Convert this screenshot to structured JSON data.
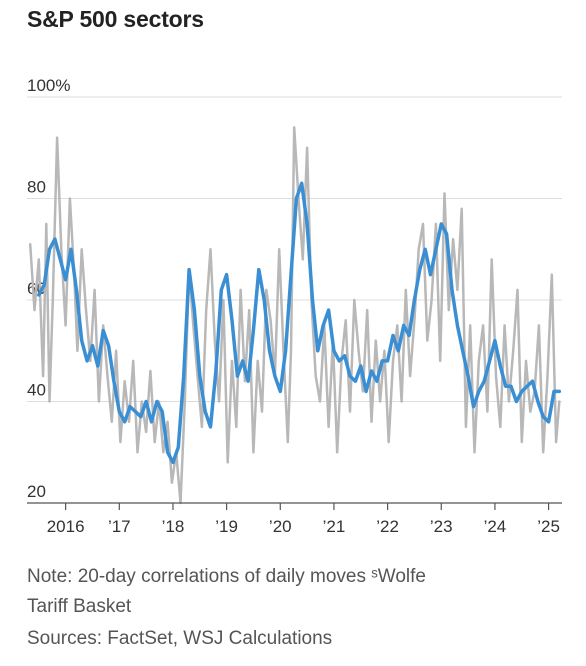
{
  "title": "S&P 500 sectors",
  "notes": {
    "line1": "Note: 20-day correlations of daily moves ˢWolfe",
    "line2": "Tariff Basket",
    "sources": "Sources: FactSet, WSJ Calculations"
  },
  "chart_data": {
    "type": "line",
    "title": "S&P 500 sectors",
    "xlabel": "",
    "ylabel": "",
    "xlim": [
      2015.28,
      2025.25
    ],
    "ylim": [
      20,
      100
    ],
    "grid": true,
    "legend": "none",
    "y_ticks": [
      {
        "value": 100,
        "label": "100%"
      },
      {
        "value": 80,
        "label": "80"
      },
      {
        "value": 60,
        "label": "60"
      },
      {
        "value": 40,
        "label": "40"
      },
      {
        "value": 20,
        "label": "20"
      }
    ],
    "x_ticks": [
      {
        "value": 2016,
        "label": "2016"
      },
      {
        "value": 2017,
        "label": "’17"
      },
      {
        "value": 2018,
        "label": "’18"
      },
      {
        "value": 2019,
        "label": "’19"
      },
      {
        "value": 2020,
        "label": "’20"
      },
      {
        "value": 2021,
        "label": "’21"
      },
      {
        "value": 2022,
        "label": "’22"
      },
      {
        "value": 2023,
        "label": "’23"
      },
      {
        "value": 2024,
        "label": "’24"
      },
      {
        "value": 2025,
        "label": "’25"
      }
    ],
    "series": [
      {
        "color": "#b8b8b8",
        "x": [
          2015.34,
          2015.42,
          2015.5,
          2015.58,
          2015.64,
          2015.7,
          2015.76,
          2015.84,
          2015.92,
          2016.0,
          2016.08,
          2016.16,
          2016.22,
          2016.3,
          2016.38,
          2016.46,
          2016.54,
          2016.62,
          2016.7,
          2016.78,
          2016.86,
          2016.94,
          2017.02,
          2017.1,
          2017.18,
          2017.26,
          2017.34,
          2017.42,
          2017.5,
          2017.58,
          2017.66,
          2017.74,
          2017.82,
          2017.9,
          2017.98,
          2018.06,
          2018.14,
          2018.22,
          2018.3,
          2018.38,
          2018.46,
          2018.54,
          2018.62,
          2018.7,
          2018.78,
          2018.86,
          2018.94,
          2019.02,
          2019.1,
          2019.18,
          2019.26,
          2019.34,
          2019.42,
          2019.5,
          2019.58,
          2019.66,
          2019.74,
          2019.82,
          2019.9,
          2019.98,
          2020.06,
          2020.14,
          2020.2,
          2020.26,
          2020.34,
          2020.42,
          2020.5,
          2020.58,
          2020.66,
          2020.74,
          2020.82,
          2020.9,
          2020.98,
          2021.06,
          2021.14,
          2021.22,
          2021.3,
          2021.38,
          2021.46,
          2021.54,
          2021.62,
          2021.7,
          2021.78,
          2021.86,
          2021.94,
          2022.02,
          2022.1,
          2022.18,
          2022.26,
          2022.34,
          2022.42,
          2022.5,
          2022.58,
          2022.66,
          2022.74,
          2022.82,
          2022.9,
          2022.98,
          2023.06,
          2023.14,
          2023.22,
          2023.3,
          2023.38,
          2023.46,
          2023.54,
          2023.62,
          2023.7,
          2023.78,
          2023.86,
          2023.94,
          2024.02,
          2024.1,
          2024.18,
          2024.26,
          2024.34,
          2024.42,
          2024.5,
          2024.58,
          2024.66,
          2024.74,
          2024.82,
          2024.9,
          2024.98,
          2025.06,
          2025.14,
          2025.2
        ],
        "values": [
          71,
          58,
          68,
          45,
          75,
          40,
          60,
          92,
          70,
          55,
          80,
          65,
          50,
          70,
          58,
          48,
          62,
          40,
          55,
          45,
          36,
          50,
          32,
          44,
          36,
          48,
          30,
          40,
          34,
          46,
          32,
          40,
          30,
          36,
          24,
          30,
          20,
          40,
          66,
          55,
          45,
          35,
          58,
          70,
          52,
          40,
          60,
          28,
          48,
          35,
          62,
          44,
          58,
          30,
          48,
          38,
          62,
          56,
          45,
          70,
          50,
          32,
          50,
          94,
          80,
          68,
          90,
          60,
          45,
          40,
          55,
          35,
          52,
          30,
          48,
          56,
          38,
          60,
          50,
          42,
          58,
          36,
          52,
          40,
          50,
          32,
          48,
          55,
          40,
          62,
          45,
          56,
          70,
          75,
          52,
          60,
          75,
          48,
          81,
          58,
          72,
          62,
          78,
          35,
          55,
          30,
          48,
          55,
          38,
          68,
          45,
          35,
          55,
          40,
          50,
          62,
          32,
          48,
          38,
          42,
          55,
          30,
          45,
          65,
          32,
          40
        ]
      },
      {
        "color": "#3a8fd4",
        "x": [
          2015.5,
          2015.6,
          2015.7,
          2015.8,
          2015.9,
          2016.0,
          2016.1,
          2016.2,
          2016.3,
          2016.4,
          2016.5,
          2016.6,
          2016.7,
          2016.8,
          2016.9,
          2017.0,
          2017.1,
          2017.2,
          2017.3,
          2017.4,
          2017.5,
          2017.6,
          2017.7,
          2017.8,
          2017.9,
          2018.0,
          2018.1,
          2018.2,
          2018.3,
          2018.4,
          2018.5,
          2018.6,
          2018.7,
          2018.8,
          2018.9,
          2019.0,
          2019.1,
          2019.2,
          2019.3,
          2019.4,
          2019.5,
          2019.6,
          2019.7,
          2019.8,
          2019.9,
          2020.0,
          2020.1,
          2020.2,
          2020.3,
          2020.4,
          2020.5,
          2020.6,
          2020.7,
          2020.8,
          2020.9,
          2021.0,
          2021.1,
          2021.2,
          2021.3,
          2021.4,
          2021.5,
          2021.6,
          2021.7,
          2021.8,
          2021.9,
          2022.0,
          2022.1,
          2022.2,
          2022.3,
          2022.4,
          2022.5,
          2022.6,
          2022.7,
          2022.8,
          2022.9,
          2023.0,
          2023.1,
          2023.2,
          2023.3,
          2023.4,
          2023.5,
          2023.6,
          2023.7,
          2023.8,
          2023.9,
          2024.0,
          2024.1,
          2024.2,
          2024.3,
          2024.4,
          2024.5,
          2024.6,
          2024.7,
          2024.8,
          2024.9,
          2025.0,
          2025.1,
          2025.2
        ],
        "values": [
          61,
          63,
          70,
          72,
          68,
          64,
          70,
          62,
          52,
          48,
          51,
          47,
          54,
          51,
          44,
          38,
          36,
          39,
          38,
          37,
          40,
          36,
          40,
          38,
          30,
          28,
          31,
          45,
          66,
          58,
          45,
          38,
          35,
          46,
          62,
          65,
          56,
          45,
          48,
          44,
          54,
          66,
          60,
          50,
          45,
          42,
          50,
          65,
          80,
          83,
          75,
          60,
          50,
          55,
          58,
          50,
          48,
          49,
          45,
          44,
          47,
          42,
          46,
          44,
          48,
          48,
          53,
          50,
          55,
          53,
          60,
          66,
          70,
          65,
          70,
          75,
          73,
          62,
          55,
          50,
          45,
          39,
          42,
          44,
          48,
          52,
          47,
          43,
          43,
          40,
          42,
          43,
          44,
          40,
          37,
          36,
          42,
          42
        ]
      }
    ]
  }
}
